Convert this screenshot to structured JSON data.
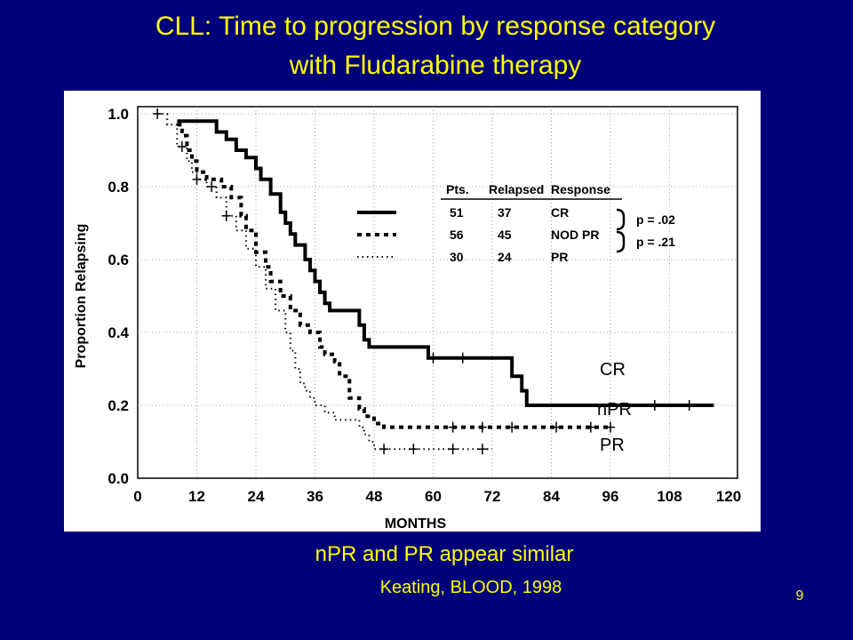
{
  "slide": {
    "title_line1": "CLL: Time to progression by response category",
    "title_line2": "with Fludarabine therapy",
    "caption": "nPR and PR appear similar",
    "citation": "Keating, BLOOD, 1998",
    "slide_number": "9",
    "colors": {
      "background": "#00007a",
      "text": "#ffff00",
      "plot_ink": "#000000"
    }
  },
  "overlay_labels": [
    "CR",
    "nPR",
    "PR"
  ],
  "chart_data": {
    "type": "line",
    "xlabel": "MONTHS",
    "ylabel": "Proportion Relapsing",
    "xlim": [
      0,
      120
    ],
    "ylim": [
      0,
      1.0
    ],
    "x_ticks": [
      "0",
      "12",
      "24",
      "36",
      "48",
      "60",
      "72",
      "84",
      "96",
      "108",
      "120"
    ],
    "y_ticks": [
      "0.0",
      "0.2",
      "0.4",
      "0.6",
      "0.8",
      "1.0"
    ],
    "grid": true,
    "legend_headers": [
      "Pts.",
      "Relapsed",
      "Response"
    ],
    "legend_placement": "top-right",
    "series": [
      {
        "name": "CR",
        "pts": "51",
        "relapsed": "37",
        "style": "solid",
        "points": [
          [
            8,
            0.98
          ],
          [
            14,
            0.98
          ],
          [
            16,
            0.95
          ],
          [
            18,
            0.93
          ],
          [
            20,
            0.9
          ],
          [
            22,
            0.88
          ],
          [
            24,
            0.85
          ],
          [
            25,
            0.82
          ],
          [
            27,
            0.78
          ],
          [
            29,
            0.73
          ],
          [
            30,
            0.7
          ],
          [
            31,
            0.67
          ],
          [
            32,
            0.64
          ],
          [
            34,
            0.6
          ],
          [
            35,
            0.57
          ],
          [
            36,
            0.54
          ],
          [
            37,
            0.51
          ],
          [
            38,
            0.48
          ],
          [
            39,
            0.46
          ],
          [
            44,
            0.46
          ],
          [
            45,
            0.42
          ],
          [
            46,
            0.38
          ],
          [
            47,
            0.36
          ],
          [
            58,
            0.36
          ],
          [
            59,
            0.33
          ],
          [
            75,
            0.33
          ],
          [
            76,
            0.28
          ],
          [
            78,
            0.24
          ],
          [
            79,
            0.2
          ],
          [
            117,
            0.2
          ]
        ]
      },
      {
        "name": "NOD PR",
        "pts": "56",
        "relapsed": "45",
        "style": "dashed",
        "points": [
          [
            8,
            0.97
          ],
          [
            9,
            0.94
          ],
          [
            10,
            0.9
          ],
          [
            11,
            0.87
          ],
          [
            12,
            0.84
          ],
          [
            14,
            0.82
          ],
          [
            17,
            0.8
          ],
          [
            19,
            0.77
          ],
          [
            21,
            0.72
          ],
          [
            22,
            0.68
          ],
          [
            24,
            0.62
          ],
          [
            26,
            0.58
          ],
          [
            27,
            0.54
          ],
          [
            29,
            0.5
          ],
          [
            31,
            0.46
          ],
          [
            33,
            0.42
          ],
          [
            35,
            0.4
          ],
          [
            37,
            0.36
          ],
          [
            38,
            0.34
          ],
          [
            40,
            0.32
          ],
          [
            41,
            0.28
          ],
          [
            43,
            0.22
          ],
          [
            45,
            0.19
          ],
          [
            46,
            0.17
          ],
          [
            48,
            0.15
          ],
          [
            50,
            0.14
          ],
          [
            56,
            0.14
          ],
          [
            96,
            0.14
          ]
        ]
      },
      {
        "name": "PR",
        "pts": "30",
        "relapsed": "24",
        "style": "dotted",
        "points": [
          [
            4,
            1.0
          ],
          [
            6,
            0.97
          ],
          [
            8,
            0.91
          ],
          [
            10,
            0.87
          ],
          [
            11,
            0.84
          ],
          [
            12,
            0.82
          ],
          [
            14,
            0.8
          ],
          [
            16,
            0.77
          ],
          [
            18,
            0.72
          ],
          [
            20,
            0.68
          ],
          [
            22,
            0.63
          ],
          [
            24,
            0.58
          ],
          [
            26,
            0.52
          ],
          [
            28,
            0.46
          ],
          [
            30,
            0.4
          ],
          [
            31,
            0.35
          ],
          [
            32,
            0.3
          ],
          [
            33,
            0.26
          ],
          [
            34,
            0.24
          ],
          [
            35,
            0.22
          ],
          [
            36,
            0.2
          ],
          [
            38,
            0.18
          ],
          [
            40,
            0.16
          ],
          [
            44,
            0.16
          ],
          [
            45,
            0.14
          ],
          [
            46,
            0.12
          ],
          [
            47,
            0.1
          ],
          [
            48,
            0.08
          ],
          [
            72,
            0.08
          ]
        ]
      }
    ],
    "censor_marks": [
      {
        "series": "CR",
        "x": [
          60,
          66,
          105,
          112
        ]
      },
      {
        "series": "NOD PR",
        "x": [
          64,
          70,
          76,
          85,
          92,
          96
        ]
      },
      {
        "series": "PR",
        "x": [
          4,
          9,
          12,
          15,
          18,
          50,
          56,
          64,
          70
        ]
      }
    ],
    "annotations": [
      {
        "text": "p = .02",
        "between": [
          "CR",
          "NOD PR"
        ]
      },
      {
        "text": "p = .21",
        "between": [
          "NOD PR",
          "PR"
        ]
      }
    ]
  }
}
